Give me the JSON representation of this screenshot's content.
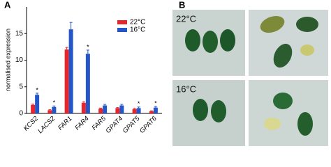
{
  "panel_labels": [
    "A",
    "B"
  ],
  "photo_labels": [
    "22°C",
    "16°C"
  ],
  "chart_data": {
    "type": "bar",
    "y_label": "normalised expression",
    "categories": [
      "KCS2",
      "LACS2",
      "FAR1",
      "FAR4",
      "FAR5",
      "GPAT4",
      "GPAT5",
      "GPAT6"
    ],
    "series": [
      {
        "name": "22°C",
        "color": "#e8252b",
        "values": [
          1.6,
          0.6,
          12,
          2.0,
          0.9,
          1.0,
          0.8,
          0.4
        ],
        "errors": [
          0.15,
          0.1,
          0.4,
          0.2,
          0.1,
          0.1,
          0.15,
          0.1
        ]
      },
      {
        "name": "16°C",
        "color": "#2456c8",
        "values": [
          3.5,
          1.2,
          15.8,
          11.2,
          1.5,
          1.5,
          1.0,
          1.1
        ],
        "errors": [
          0.3,
          0.2,
          1.3,
          0.7,
          0.2,
          0.2,
          0.2,
          0.2
        ]
      }
    ],
    "annotations": [
      "*",
      "*",
      null,
      "*",
      null,
      null,
      "*",
      "*"
    ],
    "ylim": [
      0,
      20
    ],
    "yticks": [
      0,
      5,
      10,
      15
    ],
    "grid": false
  }
}
